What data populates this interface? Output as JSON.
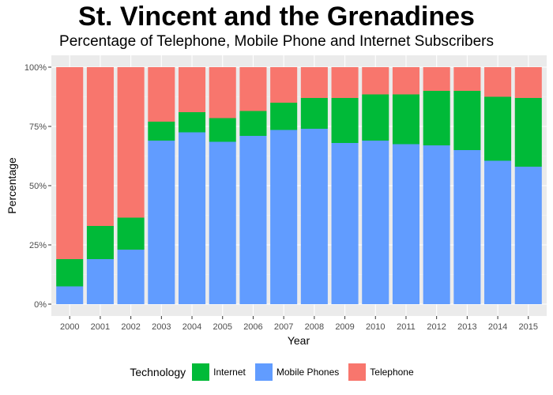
{
  "chart_data": {
    "type": "bar",
    "stacked": true,
    "title": "St. Vincent and the Grenadines",
    "subtitle": "Percentage of Telephone, Mobile Phone and Internet Subscribers",
    "xlabel": "Year",
    "ylabel": "Percentage",
    "ylim": [
      0,
      100
    ],
    "yticks": [
      "0%",
      "25%",
      "50%",
      "75%",
      "100%"
    ],
    "ytick_values": [
      0,
      25,
      50,
      75,
      100
    ],
    "grid": true,
    "legend_position": "bottom",
    "legend_title": "Technology",
    "categories": [
      "2000",
      "2001",
      "2002",
      "2003",
      "2004",
      "2005",
      "2006",
      "2007",
      "2008",
      "2009",
      "2010",
      "2011",
      "2012",
      "2013",
      "2014",
      "2015"
    ],
    "series": [
      {
        "name": "Mobile Phones",
        "color": "#619CFF",
        "values": [
          7.5,
          19,
          23,
          69,
          72.5,
          68.5,
          71,
          73.5,
          74,
          68,
          69,
          67.5,
          67,
          65,
          60.5,
          58
        ]
      },
      {
        "name": "Internet",
        "color": "#00BA38",
        "values": [
          11.5,
          14,
          13.5,
          8,
          8.5,
          10,
          10.5,
          11.5,
          13,
          19,
          19.5,
          21,
          23,
          25,
          27,
          29
        ]
      },
      {
        "name": "Telephone",
        "color": "#F8766D",
        "values": [
          81,
          67,
          63.5,
          23,
          19,
          21.5,
          18.5,
          15,
          13,
          13,
          11.5,
          11.5,
          10,
          10,
          12.5,
          13
        ]
      }
    ]
  },
  "legend": {
    "title": "Technology",
    "items": [
      {
        "label": "Internet",
        "color": "#00BA38"
      },
      {
        "label": "Mobile Phones",
        "color": "#619CFF"
      },
      {
        "label": "Telephone",
        "color": "#F8766D"
      }
    ]
  }
}
